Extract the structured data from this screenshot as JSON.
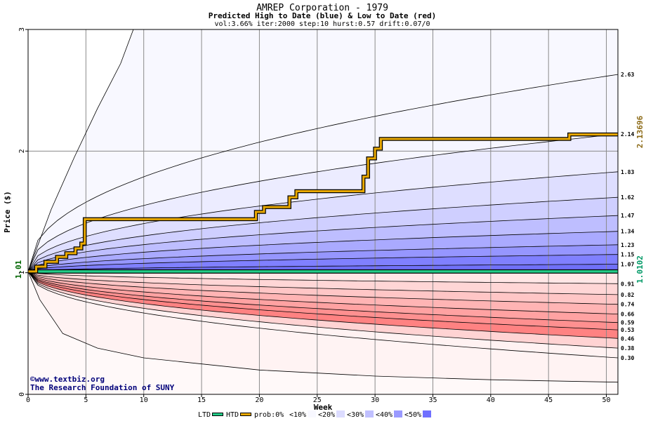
{
  "chart_data": {
    "type": "area",
    "title": "AMREP Corporation - 1979",
    "subtitle": "Predicted High to Date (blue) &  Low to Date (red)",
    "params": "vol:3.66% iter:2000 step:10 hurst:0.57 drift:0.07/0",
    "xlabel": "Week",
    "ylabel": "Price ($)",
    "xlim": [
      0,
      51
    ],
    "ylim": [
      0,
      3
    ],
    "x_ticks": [
      0,
      5,
      10,
      15,
      20,
      25,
      30,
      35,
      40,
      45,
      50
    ],
    "y_ticks": [
      0,
      1,
      2,
      3
    ],
    "start_value": 1.01,
    "start_label": "1.01",
    "last_value_label": "1.0102",
    "last_high_label": "2.13696",
    "colors": {
      "high_band": "#6f6fff",
      "low_band": "#ff7f7f",
      "htd_line": "#e8a800",
      "ltd_line": "#22cc88",
      "start_label": "#006600",
      "high_label": "#8b6914",
      "last_label": "#009966"
    },
    "quantile_end_labels": [
      "2.63",
      "2.14",
      "1.83",
      "1.62",
      "1.47",
      "1.34",
      "1.23",
      "1.15",
      "1.07",
      "0.91",
      "0.82",
      "0.74",
      "0.66",
      "0.59",
      "0.53",
      "0.46",
      "0.38",
      "0.30"
    ],
    "upper_quantile_ends": [
      2.63,
      2.14,
      1.83,
      1.62,
      1.47,
      1.34,
      1.23,
      1.15,
      1.07
    ],
    "lower_quantile_ends": [
      0.91,
      0.82,
      0.74,
      0.66,
      0.59,
      0.53,
      0.46,
      0.38,
      0.3
    ],
    "outer_upper": {
      "x": [
        0,
        2,
        4,
        6,
        8,
        9.1
      ],
      "y": [
        1.01,
        1.52,
        1.95,
        2.35,
        2.72,
        3.0
      ]
    },
    "outer_lower": {
      "x": [
        0,
        1,
        3,
        6,
        10,
        20,
        30,
        40,
        51
      ],
      "y": [
        1.01,
        0.78,
        0.5,
        0.38,
        0.3,
        0.2,
        0.15,
        0.12,
        0.1
      ]
    },
    "htd_series": {
      "name": "HTD",
      "x": [
        0,
        0.7,
        0.7,
        1.5,
        1.5,
        2.5,
        2.5,
        3.3,
        3.3,
        4.1,
        4.1,
        4.6,
        4.6,
        4.9,
        4.9,
        19.7,
        19.7,
        20.4,
        20.4,
        22.6,
        22.6,
        23.2,
        23.2,
        29.0,
        29.0,
        29.4,
        29.4,
        30.0,
        30.0,
        30.5,
        30.5,
        46.8,
        46.8,
        51
      ],
      "y": [
        1.01,
        1.01,
        1.05,
        1.05,
        1.09,
        1.09,
        1.13,
        1.13,
        1.16,
        1.16,
        1.2,
        1.2,
        1.24,
        1.24,
        1.44,
        1.44,
        1.5,
        1.5,
        1.54,
        1.54,
        1.62,
        1.62,
        1.67,
        1.67,
        1.79,
        1.79,
        1.94,
        1.94,
        2.02,
        2.02,
        2.1,
        2.1,
        2.137,
        2.137
      ]
    },
    "ltd_series": {
      "name": "LTD",
      "x": [
        0,
        51
      ],
      "y": [
        1.01,
        1.01
      ]
    },
    "legend": [
      {
        "label": "LTD",
        "kind": "line",
        "color": "#22cc88"
      },
      {
        "label": "HTD",
        "kind": "line",
        "color": "#e8a800"
      },
      {
        "label": "prob:0%",
        "kind": "text"
      },
      {
        "label": "<10%",
        "kind": "box",
        "color": "#f8f8ff"
      },
      {
        "label": "<20%",
        "kind": "box",
        "color": "#dcdcff"
      },
      {
        "label": "<30%",
        "kind": "box",
        "color": "#c0c0ff"
      },
      {
        "label": "<40%",
        "kind": "box",
        "color": "#9a9aff"
      },
      {
        "label": "<50%",
        "kind": "box",
        "color": "#7070ff"
      }
    ],
    "credits": [
      "©www.textbiz.org",
      "The Research Foundation of SUNY"
    ]
  }
}
